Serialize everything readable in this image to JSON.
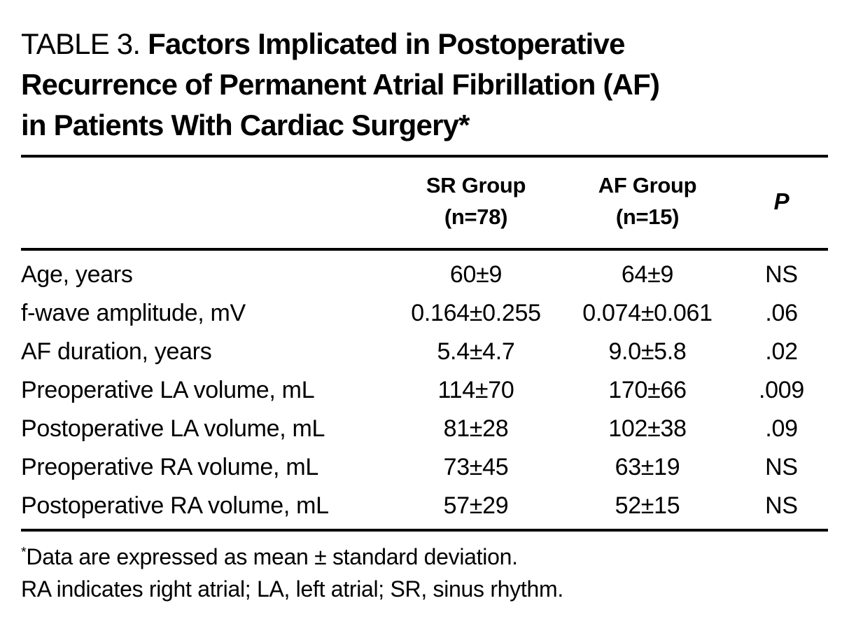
{
  "document": {
    "background_color": "#ffffff",
    "text_color": "#000000"
  },
  "header": {
    "table_label": "TABLE 3.",
    "title_line1": "Factors Implicated in Postoperative",
    "title_line2": "Recurrence of Permanent Atrial Fibrillation (AF)",
    "title_line3": "in Patients With Cardiac Surgery*"
  },
  "table": {
    "columns": {
      "sr": {
        "line1": "SR Group",
        "line2": "(n=78)"
      },
      "af": {
        "line1": "AF Group",
        "line2": "(n=15)"
      },
      "p": "P"
    },
    "rows": [
      {
        "label": "Age, years",
        "sr": "60±9",
        "af": "64±9",
        "p": "NS"
      },
      {
        "label": "f-wave amplitude, mV",
        "sr": "0.164±0.255",
        "af": "0.074±0.061",
        "p": ".06"
      },
      {
        "label": "AF duration, years",
        "sr": "5.4±4.7",
        "af": "9.0±5.8",
        "p": ".02"
      },
      {
        "label": "Preoperative LA volume, mL",
        "sr": "114±70",
        "af": "170±66",
        "p": ".009"
      },
      {
        "label": "Postoperative LA volume, mL",
        "sr": "81±28",
        "af": "102±38",
        "p": ".09"
      },
      {
        "label": "Preoperative RA volume, mL",
        "sr": "73±45",
        "af": "63±19",
        "p": "NS"
      },
      {
        "label": "Postoperative RA volume, mL",
        "sr": "57±29",
        "af": "52±15",
        "p": "NS"
      }
    ]
  },
  "footnotes": {
    "marker": "*",
    "line1": "Data are expressed as mean ± standard deviation.",
    "line2": "RA indicates right atrial; LA, left atrial; SR, sinus rhythm."
  }
}
